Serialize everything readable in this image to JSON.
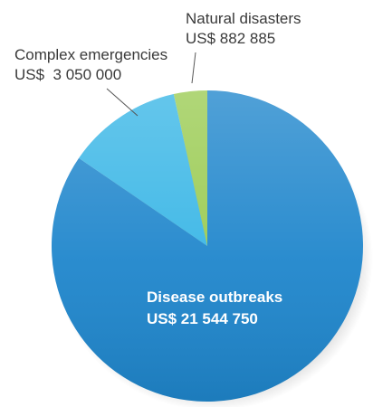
{
  "chart_data": {
    "type": "pie",
    "slices": [
      {
        "label": "Disease outbreaks",
        "amount_text": "US$ 21 544 750",
        "value": 21544750,
        "color": "#1f86cc"
      },
      {
        "label": "Complex emergencies",
        "amount_text": "US$  3 050 000",
        "value": 3050000,
        "color": "#39b6e6"
      },
      {
        "label": "Natural disasters",
        "amount_text": "US$ 882 885",
        "value": 882885,
        "color": "#9acb52"
      }
    ],
    "start_angle_deg": 0,
    "direction": "clockwise"
  }
}
